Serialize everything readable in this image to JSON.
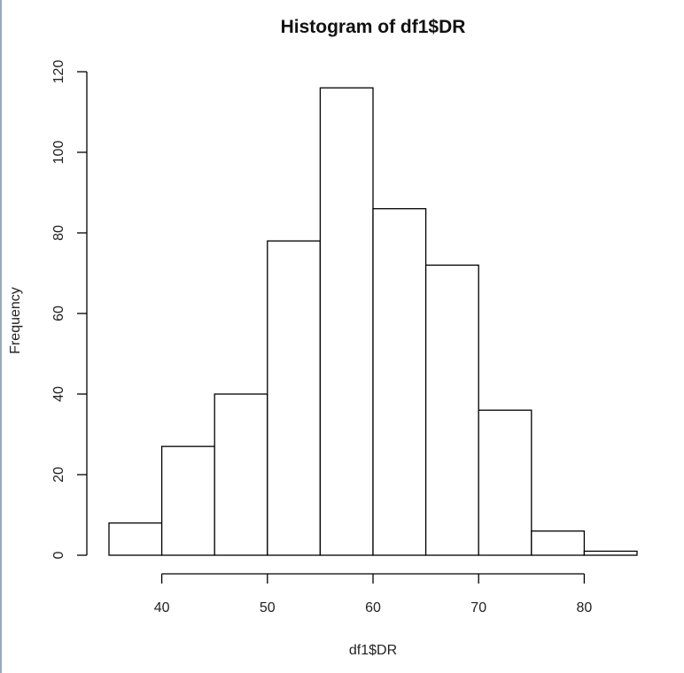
{
  "chart_data": {
    "type": "bar",
    "title": "Histogram of df1$DR",
    "xlabel": "df1$DR",
    "ylabel": "Frequency",
    "bins": [
      {
        "start": 35,
        "end": 40,
        "count": 8
      },
      {
        "start": 40,
        "end": 45,
        "count": 27
      },
      {
        "start": 45,
        "end": 50,
        "count": 40
      },
      {
        "start": 50,
        "end": 55,
        "count": 78
      },
      {
        "start": 55,
        "end": 60,
        "count": 116
      },
      {
        "start": 60,
        "end": 65,
        "count": 86
      },
      {
        "start": 65,
        "end": 70,
        "count": 72
      },
      {
        "start": 70,
        "end": 75,
        "count": 36
      },
      {
        "start": 75,
        "end": 80,
        "count": 6
      },
      {
        "start": 80,
        "end": 85,
        "count": 1
      }
    ],
    "x_ticks": [
      "40",
      "50",
      "60",
      "70",
      "80"
    ],
    "y_ticks": [
      "0",
      "20",
      "40",
      "60",
      "80",
      "100",
      "120"
    ],
    "xlim": [
      35,
      85
    ],
    "ylim": [
      0,
      120
    ],
    "grid": false,
    "legend": "none"
  }
}
